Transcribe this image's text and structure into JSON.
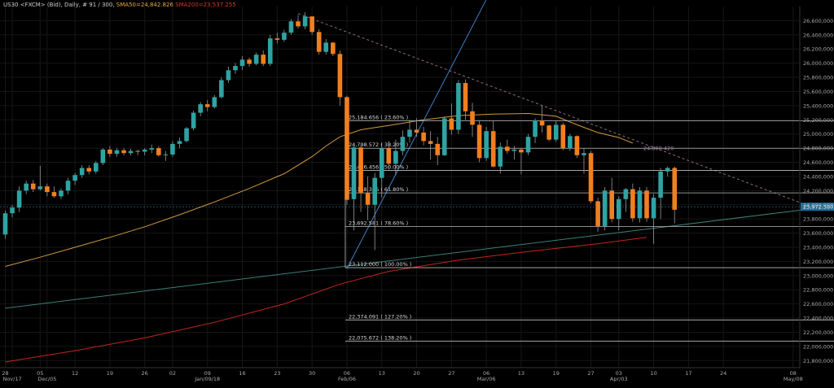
{
  "header": {
    "symbol": "US30 <FXCM> (Bid), Daily, # 91 / 300,",
    "sma50": "SMA50=24,842.826",
    "sma200": "SMA200=23,537.255"
  },
  "colors": {
    "background": "#000000",
    "bull": "#2fa3a3",
    "bear": "#f27f1d",
    "grid": "#161616",
    "axis_text": "#a9a9a9",
    "sma50": "#d19a42",
    "sma200": "#c4261c",
    "trendline": "#3d7f7a",
    "steep_line": "#3f7fc0",
    "dashed_line": "#8a6e88",
    "fib_line": "#bdbdbd",
    "current_price": "#4aa8d8"
  },
  "chart_data": {
    "type": "candlestick",
    "ylim": [
      21700,
      26800
    ],
    "y_ticks": [
      "26,600,000",
      "26,400,000",
      "26,200,000",
      "26,000,000",
      "25,800,000",
      "25,600,000",
      "25,400,000",
      "25,200,000",
      "25,000,000",
      "24,800,000",
      "24,600,000",
      "24,400,000",
      "24,200,000",
      "24,000,000",
      "23,800,000",
      "23,600,000",
      "23,400,000",
      "23,200,000",
      "23,000,000",
      "22,800,000",
      "22,600,000",
      "22,400,000",
      "22,200,000",
      "22,000,000",
      "21,800,000"
    ],
    "x_labels": [
      {
        "label": "28",
        "bar": 0
      },
      {
        "label": "Nov/17",
        "bar": 1
      },
      {
        "label": "05",
        "bar": 5
      },
      {
        "label": "Dec/05",
        "bar": 6
      },
      {
        "label": "12",
        "bar": 10
      },
      {
        "label": "19",
        "bar": 15
      },
      {
        "label": "26",
        "bar": 20
      },
      {
        "label": "02",
        "bar": 24
      },
      {
        "label": "09",
        "bar": 29
      },
      {
        "label": "Jan/09/18",
        "bar": 29
      },
      {
        "label": "16",
        "bar": 34
      },
      {
        "label": "23",
        "bar": 39
      },
      {
        "label": "30",
        "bar": 44
      },
      {
        "label": "06",
        "bar": 49
      },
      {
        "label": "Feb/06",
        "bar": 49
      },
      {
        "label": "13",
        "bar": 54
      },
      {
        "label": "20",
        "bar": 59
      },
      {
        "label": "27",
        "bar": 64
      },
      {
        "label": "06",
        "bar": 69
      },
      {
        "label": "Mar/06",
        "bar": 69
      },
      {
        "label": "13",
        "bar": 74
      },
      {
        "label": "19",
        "bar": 79
      },
      {
        "label": "27",
        "bar": 84
      },
      {
        "label": "03",
        "bar": 88
      },
      {
        "label": "Apr/03",
        "bar": 88
      },
      {
        "label": "10",
        "bar": 93
      },
      {
        "label": "17",
        "bar": 98
      },
      {
        "label": "24",
        "bar": 103
      },
      {
        "label": "08",
        "bar": 113
      },
      {
        "label": "May/08",
        "bar": 113
      }
    ],
    "candles": [
      [
        23580,
        23920,
        23520,
        23880
      ],
      [
        23880,
        24000,
        23820,
        23960
      ],
      [
        23960,
        24260,
        23900,
        24200
      ],
      [
        24200,
        24340,
        24150,
        24300
      ],
      [
        24300,
        24350,
        24180,
        24220
      ],
      [
        24220,
        24550,
        24200,
        24260
      ],
      [
        24260,
        24300,
        24120,
        24180
      ],
      [
        24180,
        24260,
        24100,
        24120
      ],
      [
        24120,
        24230,
        24080,
        24200
      ],
      [
        24200,
        24380,
        24150,
        24340
      ],
      [
        24340,
        24450,
        24280,
        24420
      ],
      [
        24420,
        24560,
        24380,
        24520
      ],
      [
        24520,
        24560,
        24430,
        24470
      ],
      [
        24470,
        24620,
        24440,
        24590
      ],
      [
        24590,
        24800,
        24560,
        24780
      ],
      [
        24780,
        24830,
        24680,
        24720
      ],
      [
        24720,
        24800,
        24680,
        24770
      ],
      [
        24770,
        24800,
        24700,
        24730
      ],
      [
        24730,
        24790,
        24700,
        24760
      ],
      [
        24760,
        24780,
        24700,
        24750
      ],
      [
        24750,
        24800,
        24700,
        24780
      ],
      [
        24780,
        24850,
        24730,
        24800
      ],
      [
        24800,
        24830,
        24680,
        24700
      ],
      [
        24700,
        24760,
        24620,
        24710
      ],
      [
        24710,
        24900,
        24680,
        24860
      ],
      [
        24860,
        24950,
        24800,
        24900
      ],
      [
        24900,
        25100,
        24880,
        25080
      ],
      [
        25080,
        25330,
        25050,
        25300
      ],
      [
        25300,
        25450,
        25250,
        25420
      ],
      [
        25420,
        25480,
        25320,
        25380
      ],
      [
        25380,
        25550,
        25360,
        25520
      ],
      [
        25520,
        25800,
        25500,
        25760
      ],
      [
        25760,
        25950,
        25720,
        25900
      ],
      [
        25900,
        26000,
        25850,
        25960
      ],
      [
        25960,
        26100,
        25900,
        26050
      ],
      [
        26050,
        26080,
        25950,
        25990
      ],
      [
        25990,
        26150,
        25970,
        26120
      ],
      [
        26120,
        26180,
        25960,
        25990
      ],
      [
        25990,
        26400,
        25960,
        26350
      ],
      [
        26350,
        26430,
        26280,
        26330
      ],
      [
        26330,
        26470,
        26300,
        26430
      ],
      [
        26430,
        26620,
        26400,
        26590
      ],
      [
        26590,
        26680,
        26490,
        26520
      ],
      [
        26520,
        26720,
        26480,
        26660
      ],
      [
        26660,
        26660,
        26400,
        26440
      ],
      [
        26440,
        26480,
        26120,
        26160
      ],
      [
        26160,
        26340,
        26120,
        26290
      ],
      [
        26290,
        26300,
        26100,
        26130
      ],
      [
        26130,
        26180,
        25400,
        25520
      ],
      [
        25520,
        25540,
        24000,
        24070
      ],
      [
        24080,
        24840,
        23640,
        24810
      ],
      [
        24810,
        24840,
        23900,
        24170
      ],
      [
        24170,
        24400,
        23780,
        24000
      ],
      [
        24000,
        24450,
        23360,
        24380
      ],
      [
        24380,
        24870,
        24100,
        24800
      ],
      [
        24800,
        24900,
        24500,
        24580
      ],
      [
        24580,
        24920,
        24420,
        24760
      ],
      [
        24760,
        25050,
        24700,
        24960
      ],
      [
        24960,
        25200,
        24880,
        25060
      ],
      [
        25060,
        25220,
        24960,
        25020
      ],
      [
        25020,
        25100,
        24840,
        24900
      ],
      [
        24900,
        25040,
        24640,
        24860
      ],
      [
        24860,
        24960,
        24560,
        24700
      ],
      [
        24700,
        25250,
        24690,
        25220
      ],
      [
        25220,
        25430,
        24990,
        25060
      ],
      [
        25060,
        25760,
        25000,
        25720
      ],
      [
        25720,
        25770,
        25200,
        25320
      ],
      [
        25320,
        25440,
        24960,
        25130
      ],
      [
        25130,
        25190,
        24600,
        24660
      ],
      [
        24660,
        25100,
        24620,
        25040
      ],
      [
        25040,
        25190,
        24530,
        24540
      ],
      [
        24540,
        24880,
        24440,
        24820
      ],
      [
        24820,
        24920,
        24720,
        24760
      ],
      [
        24760,
        24830,
        24640,
        24780
      ],
      [
        24780,
        24800,
        24430,
        24740
      ],
      [
        24740,
        25000,
        24700,
        24960
      ],
      [
        24960,
        25220,
        24870,
        25190
      ],
      [
        25190,
        25400,
        25020,
        25120
      ],
      [
        25120,
        25130,
        24900,
        24920
      ],
      [
        24920,
        25180,
        24890,
        25130
      ],
      [
        25130,
        25160,
        24770,
        24800
      ],
      [
        24800,
        25000,
        24760,
        24970
      ],
      [
        24970,
        24980,
        24660,
        24700
      ],
      [
        24700,
        24800,
        24440,
        24730
      ],
      [
        24730,
        24760,
        24020,
        24050
      ],
      [
        24050,
        24100,
        23620,
        23700
      ],
      [
        23700,
        24250,
        23640,
        24200
      ],
      [
        24200,
        24380,
        23750,
        23800
      ],
      [
        23800,
        24120,
        23640,
        24080
      ],
      [
        24080,
        24240,
        23900,
        24220
      ],
      [
        24220,
        24300,
        23760,
        23810
      ],
      [
        23810,
        24250,
        23750,
        24200
      ],
      [
        24200,
        24250,
        23760,
        23810
      ],
      [
        23810,
        24150,
        23450,
        24100
      ],
      [
        24100,
        24520,
        23800,
        24470
      ],
      [
        24470,
        24540,
        24400,
        24520
      ],
      [
        24520,
        24540,
        23740,
        23930
      ]
    ],
    "sma50": [
      [
        0,
        23130
      ],
      [
        5,
        23260
      ],
      [
        10,
        23400
      ],
      [
        15,
        23540
      ],
      [
        20,
        23690
      ],
      [
        25,
        23860
      ],
      [
        30,
        24040
      ],
      [
        35,
        24230
      ],
      [
        40,
        24440
      ],
      [
        44,
        24680
      ],
      [
        46,
        24830
      ],
      [
        48,
        24960
      ],
      [
        51,
        25060
      ],
      [
        55,
        25120
      ],
      [
        60,
        25200
      ],
      [
        65,
        25260
      ],
      [
        70,
        25280
      ],
      [
        75,
        25290
      ],
      [
        79,
        25250
      ],
      [
        82,
        25130
      ],
      [
        85,
        25020
      ],
      [
        88,
        24950
      ],
      [
        90,
        24870
      ]
    ],
    "sma200": [
      [
        0,
        21780
      ],
      [
        10,
        21940
      ],
      [
        20,
        22120
      ],
      [
        30,
        22340
      ],
      [
        40,
        22600
      ],
      [
        48,
        22880
      ],
      [
        55,
        23060
      ],
      [
        65,
        23220
      ],
      [
        75,
        23340
      ],
      [
        85,
        23450
      ],
      [
        92,
        23540
      ]
    ],
    "trendlines": [
      {
        "kind": "long_trend",
        "from": [
          0,
          22540
        ],
        "to": [
          117,
          23960
        ]
      },
      {
        "kind": "steep_up",
        "from": [
          49,
          23100
        ],
        "to": [
          69,
          26900
        ]
      },
      {
        "kind": "descending_dashed",
        "from": [
          42,
          26700
        ],
        "to": [
          117,
          23920
        ]
      }
    ],
    "fibonacci": {
      "start_bar": 49,
      "end_bar": 119,
      "levels": [
        {
          "label": "25,184.656 ( 23.60% )",
          "price": 25184.656
        },
        {
          "label": "24,798.572 ( 38.20% )",
          "price": 24798.572
        },
        {
          "label": "24,486.456 ( 50.00% )",
          "price": 24486.456
        },
        {
          "label": "24,168.326 ( 61.80% )",
          "price": 24168.326
        },
        {
          "label": "23,692.581 ( 78.60% )",
          "price": 23692.581
        },
        {
          "label": "23,112.000 ( 100.00% )",
          "price": 23112.0
        },
        {
          "label": "22,374.091 ( 127.20% )",
          "price": 22374.091
        },
        {
          "label": "22,075.672 ( 138.20% )",
          "price": 22075.672
        }
      ]
    },
    "annotations": [
      {
        "label": "24,800.420",
        "bar": 92,
        "price": 24800
      }
    ],
    "current_price": {
      "label": "23,972.380",
      "price": 23972.38
    }
  }
}
